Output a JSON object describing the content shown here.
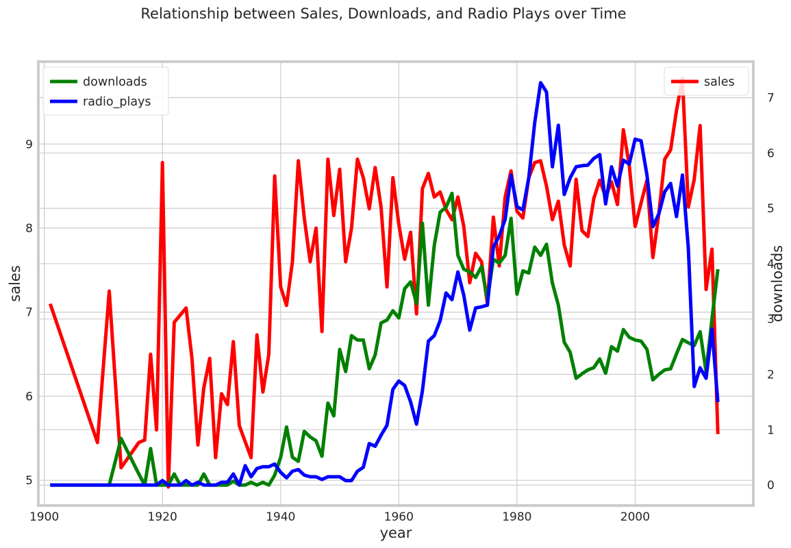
{
  "chart_data": {
    "type": "line",
    "title": "Relationship between Sales, Downloads, and Radio Plays over Time",
    "xlabel": "year",
    "ylabel_left": "sales",
    "ylabel_right": "downloads",
    "xlim": [
      1899,
      2020
    ],
    "ylim_left": [
      4.7,
      9.98
    ],
    "ylim_right": [
      -0.37,
      7.65
    ],
    "xticks": [
      1900,
      1920,
      1940,
      1960,
      1980,
      2000
    ],
    "yticks_left": [
      5,
      6,
      7,
      8,
      9
    ],
    "yticks_right": [
      0,
      1,
      2,
      3,
      4,
      5,
      6,
      7
    ],
    "grid": true,
    "legends": [
      {
        "position": "top-left",
        "entries": [
          "downloads",
          "radio_plays"
        ]
      },
      {
        "position": "top-right",
        "entries": [
          "sales"
        ]
      }
    ],
    "series": [
      {
        "name": "sales",
        "axis": "left",
        "color": "#ff0000",
        "points": [
          [
            1901,
            7.1
          ],
          [
            1909,
            5.45
          ],
          [
            1911,
            7.25
          ],
          [
            1913,
            5.15
          ],
          [
            1916,
            5.45
          ],
          [
            1917,
            5.48
          ],
          [
            1918,
            6.5
          ],
          [
            1919,
            5.6
          ],
          [
            1920,
            8.78
          ],
          [
            1921,
            4.92
          ],
          [
            1922,
            6.88
          ],
          [
            1924,
            7.05
          ],
          [
            1925,
            6.45
          ],
          [
            1926,
            5.42
          ],
          [
            1927,
            6.1
          ],
          [
            1928,
            6.45
          ],
          [
            1929,
            5.27
          ],
          [
            1930,
            6.03
          ],
          [
            1931,
            5.9
          ],
          [
            1932,
            6.65
          ],
          [
            1933,
            5.65
          ],
          [
            1935,
            5.27
          ],
          [
            1936,
            6.73
          ],
          [
            1937,
            6.05
          ],
          [
            1938,
            6.5
          ],
          [
            1939,
            8.62
          ],
          [
            1940,
            7.3
          ],
          [
            1941,
            7.08
          ],
          [
            1942,
            7.6
          ],
          [
            1943,
            8.8
          ],
          [
            1944,
            8.12
          ],
          [
            1945,
            7.6
          ],
          [
            1946,
            8.0
          ],
          [
            1947,
            6.77
          ],
          [
            1948,
            8.82
          ],
          [
            1949,
            8.15
          ],
          [
            1950,
            8.7
          ],
          [
            1951,
            7.6
          ],
          [
            1952,
            8.0
          ],
          [
            1953,
            8.82
          ],
          [
            1954,
            8.6
          ],
          [
            1955,
            8.23
          ],
          [
            1956,
            8.72
          ],
          [
            1957,
            8.25
          ],
          [
            1958,
            7.3
          ],
          [
            1959,
            8.6
          ],
          [
            1960,
            8.05
          ],
          [
            1961,
            7.63
          ],
          [
            1962,
            7.95
          ],
          [
            1963,
            6.98
          ],
          [
            1964,
            8.47
          ],
          [
            1965,
            8.65
          ],
          [
            1966,
            8.37
          ],
          [
            1967,
            8.43
          ],
          [
            1968,
            8.22
          ],
          [
            1969,
            8.1
          ],
          [
            1970,
            8.37
          ],
          [
            1971,
            8.02
          ],
          [
            1972,
            7.35
          ],
          [
            1973,
            7.7
          ],
          [
            1974,
            7.6
          ],
          [
            1975,
            7.1
          ],
          [
            1976,
            8.13
          ],
          [
            1977,
            7.55
          ],
          [
            1978,
            8.37
          ],
          [
            1979,
            8.68
          ],
          [
            1980,
            8.2
          ],
          [
            1981,
            8.12
          ],
          [
            1982,
            8.6
          ],
          [
            1983,
            8.78
          ],
          [
            1984,
            8.8
          ],
          [
            1985,
            8.5
          ],
          [
            1986,
            8.1
          ],
          [
            1987,
            8.32
          ],
          [
            1988,
            7.8
          ],
          [
            1989,
            7.55
          ],
          [
            1990,
            8.58
          ],
          [
            1991,
            7.97
          ],
          [
            1992,
            7.9
          ],
          [
            1993,
            8.35
          ],
          [
            1994,
            8.57
          ],
          [
            1995,
            8.37
          ],
          [
            1996,
            8.55
          ],
          [
            1997,
            8.28
          ],
          [
            1998,
            9.17
          ],
          [
            1999,
            8.75
          ],
          [
            2000,
            8.02
          ],
          [
            2001,
            8.3
          ],
          [
            2002,
            8.57
          ],
          [
            2003,
            7.65
          ],
          [
            2004,
            8.17
          ],
          [
            2005,
            8.82
          ],
          [
            2006,
            8.93
          ],
          [
            2007,
            9.4
          ],
          [
            2008,
            9.78
          ],
          [
            2009,
            8.25
          ],
          [
            2010,
            8.58
          ],
          [
            2011,
            9.22
          ],
          [
            2012,
            7.27
          ],
          [
            2013,
            7.75
          ],
          [
            2014,
            5.55
          ]
        ]
      },
      {
        "name": "downloads",
        "axis": "right",
        "color": "#008000",
        "points": [
          [
            1901,
            0
          ],
          [
            1911,
            0
          ],
          [
            1913,
            0.84
          ],
          [
            1916,
            0.2
          ],
          [
            1917,
            0
          ],
          [
            1918,
            0.66
          ],
          [
            1919,
            0
          ],
          [
            1920,
            0
          ],
          [
            1921,
            0
          ],
          [
            1922,
            0.2
          ],
          [
            1923,
            0
          ],
          [
            1924,
            0
          ],
          [
            1925,
            0
          ],
          [
            1926,
            0
          ],
          [
            1927,
            0.2
          ],
          [
            1928,
            0
          ],
          [
            1929,
            0
          ],
          [
            1930,
            0
          ],
          [
            1931,
            0
          ],
          [
            1932,
            0.07
          ],
          [
            1933,
            0
          ],
          [
            1934,
            0
          ],
          [
            1935,
            0.05
          ],
          [
            1936,
            0
          ],
          [
            1937,
            0.05
          ],
          [
            1938,
            0
          ],
          [
            1939,
            0.18
          ],
          [
            1940,
            0.5
          ],
          [
            1941,
            1.05
          ],
          [
            1942,
            0.5
          ],
          [
            1943,
            0.43
          ],
          [
            1944,
            0.97
          ],
          [
            1945,
            0.87
          ],
          [
            1946,
            0.8
          ],
          [
            1947,
            0.52
          ],
          [
            1948,
            1.48
          ],
          [
            1949,
            1.25
          ],
          [
            1950,
            2.45
          ],
          [
            1951,
            2.05
          ],
          [
            1952,
            2.7
          ],
          [
            1953,
            2.62
          ],
          [
            1954,
            2.62
          ],
          [
            1955,
            2.1
          ],
          [
            1956,
            2.35
          ],
          [
            1957,
            2.93
          ],
          [
            1958,
            2.98
          ],
          [
            1959,
            3.15
          ],
          [
            1960,
            3.02
          ],
          [
            1961,
            3.55
          ],
          [
            1962,
            3.67
          ],
          [
            1963,
            3.28
          ],
          [
            1964,
            4.73
          ],
          [
            1965,
            3.25
          ],
          [
            1966,
            4.33
          ],
          [
            1967,
            4.93
          ],
          [
            1968,
            5.02
          ],
          [
            1969,
            5.27
          ],
          [
            1970,
            4.15
          ],
          [
            1971,
            3.9
          ],
          [
            1972,
            3.85
          ],
          [
            1973,
            3.75
          ],
          [
            1974,
            3.95
          ],
          [
            1975,
            3.35
          ],
          [
            1976,
            4.08
          ],
          [
            1977,
            4.01
          ],
          [
            1978,
            4.15
          ],
          [
            1979,
            4.82
          ],
          [
            1980,
            3.45
          ],
          [
            1981,
            3.87
          ],
          [
            1982,
            3.83
          ],
          [
            1983,
            4.3
          ],
          [
            1984,
            4.15
          ],
          [
            1985,
            4.35
          ],
          [
            1986,
            3.65
          ],
          [
            1987,
            3.25
          ],
          [
            1988,
            2.58
          ],
          [
            1989,
            2.4
          ],
          [
            1990,
            1.93
          ],
          [
            1991,
            2.01
          ],
          [
            1992,
            2.08
          ],
          [
            1993,
            2.12
          ],
          [
            1994,
            2.28
          ],
          [
            1995,
            2.02
          ],
          [
            1996,
            2.5
          ],
          [
            1997,
            2.42
          ],
          [
            1998,
            2.81
          ],
          [
            1999,
            2.67
          ],
          [
            2000,
            2.62
          ],
          [
            2001,
            2.6
          ],
          [
            2002,
            2.45
          ],
          [
            2003,
            1.9
          ],
          [
            2004,
            2.0
          ],
          [
            2005,
            2.08
          ],
          [
            2006,
            2.1
          ],
          [
            2007,
            2.37
          ],
          [
            2008,
            2.63
          ],
          [
            2009,
            2.57
          ],
          [
            2010,
            2.52
          ],
          [
            2011,
            2.77
          ],
          [
            2012,
            2.05
          ],
          [
            2013,
            3.0
          ],
          [
            2014,
            3.9
          ]
        ]
      },
      {
        "name": "radio_plays",
        "axis": "right",
        "color": "#0000ff",
        "points": [
          [
            1901,
            0
          ],
          [
            1910,
            0
          ],
          [
            1915,
            0
          ],
          [
            1919,
            0
          ],
          [
            1920,
            0.08
          ],
          [
            1921,
            0
          ],
          [
            1922,
            0
          ],
          [
            1923,
            0
          ],
          [
            1924,
            0.08
          ],
          [
            1925,
            0
          ],
          [
            1926,
            0.05
          ],
          [
            1927,
            0
          ],
          [
            1928,
            0
          ],
          [
            1929,
            0
          ],
          [
            1930,
            0.05
          ],
          [
            1931,
            0.05
          ],
          [
            1932,
            0.2
          ],
          [
            1933,
            0
          ],
          [
            1934,
            0.35
          ],
          [
            1935,
            0.15
          ],
          [
            1936,
            0.3
          ],
          [
            1937,
            0.33
          ],
          [
            1938,
            0.33
          ],
          [
            1939,
            0.38
          ],
          [
            1940,
            0.23
          ],
          [
            1941,
            0.13
          ],
          [
            1942,
            0.25
          ],
          [
            1943,
            0.28
          ],
          [
            1944,
            0.18
          ],
          [
            1945,
            0.15
          ],
          [
            1946,
            0.15
          ],
          [
            1947,
            0.1
          ],
          [
            1948,
            0.15
          ],
          [
            1949,
            0.15
          ],
          [
            1950,
            0.15
          ],
          [
            1951,
            0.08
          ],
          [
            1952,
            0.08
          ],
          [
            1953,
            0.25
          ],
          [
            1954,
            0.32
          ],
          [
            1955,
            0.75
          ],
          [
            1956,
            0.7
          ],
          [
            1957,
            0.9
          ],
          [
            1958,
            1.08
          ],
          [
            1959,
            1.73
          ],
          [
            1960,
            1.88
          ],
          [
            1961,
            1.8
          ],
          [
            1962,
            1.5
          ],
          [
            1963,
            1.1
          ],
          [
            1964,
            1.7
          ],
          [
            1965,
            2.6
          ],
          [
            1966,
            2.7
          ],
          [
            1967,
            2.97
          ],
          [
            1968,
            3.47
          ],
          [
            1969,
            3.35
          ],
          [
            1970,
            3.85
          ],
          [
            1971,
            3.43
          ],
          [
            1972,
            2.8
          ],
          [
            1973,
            3.2
          ],
          [
            1974,
            3.22
          ],
          [
            1975,
            3.25
          ],
          [
            1976,
            4.3
          ],
          [
            1977,
            4.5
          ],
          [
            1978,
            4.8
          ],
          [
            1979,
            5.6
          ],
          [
            1980,
            5.03
          ],
          [
            1981,
            4.97
          ],
          [
            1982,
            5.55
          ],
          [
            1983,
            6.55
          ],
          [
            1984,
            7.27
          ],
          [
            1985,
            7.1
          ],
          [
            1986,
            5.75
          ],
          [
            1987,
            6.5
          ],
          [
            1988,
            5.25
          ],
          [
            1989,
            5.55
          ],
          [
            1990,
            5.75
          ],
          [
            1991,
            5.77
          ],
          [
            1992,
            5.78
          ],
          [
            1993,
            5.9
          ],
          [
            1994,
            5.97
          ],
          [
            1995,
            5.08
          ],
          [
            1996,
            5.75
          ],
          [
            1997,
            5.4
          ],
          [
            1998,
            5.87
          ],
          [
            1999,
            5.8
          ],
          [
            2000,
            6.25
          ],
          [
            2001,
            6.22
          ],
          [
            2002,
            5.6
          ],
          [
            2003,
            4.67
          ],
          [
            2004,
            4.9
          ],
          [
            2005,
            5.3
          ],
          [
            2006,
            5.45
          ],
          [
            2007,
            4.85
          ],
          [
            2008,
            5.6
          ],
          [
            2009,
            4.28
          ],
          [
            2010,
            1.78
          ],
          [
            2011,
            2.12
          ],
          [
            2012,
            1.93
          ],
          [
            2013,
            2.82
          ],
          [
            2014,
            1.5
          ]
        ]
      }
    ]
  }
}
